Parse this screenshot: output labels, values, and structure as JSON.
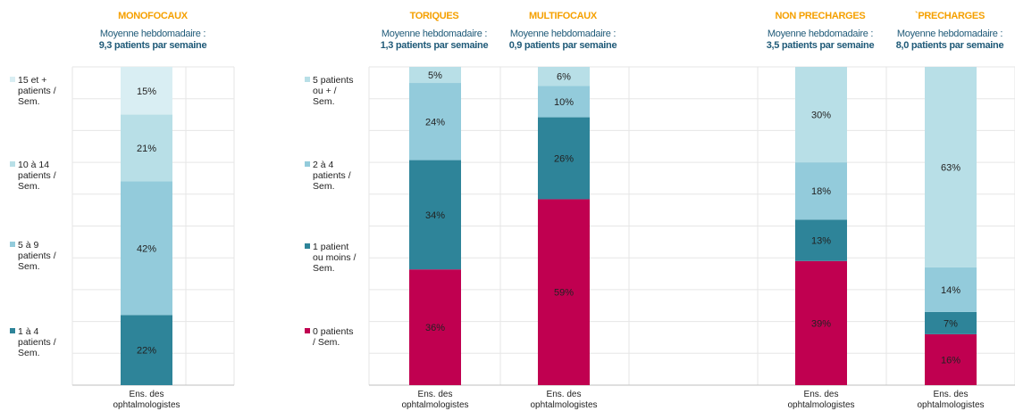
{
  "colors": {
    "cat0": "#c00050",
    "cat1": "#2e8499",
    "cat2": "#93cbdb",
    "cat3": "#b8dfe7",
    "cat4": "#d9eef3",
    "title": "#f5a000",
    "subtitle": "#1f5a78",
    "grid": "#e6e6e6"
  },
  "panels": [
    {
      "title": "MONOFOCAUX",
      "subtitle": "Moyenne hebdomadaire :",
      "average": "9,3 patients par semaine"
    },
    {
      "title": "TORIQUES",
      "subtitle": "Moyenne hebdomadaire :",
      "average": "1,3 patients par semaine"
    },
    {
      "title": "MULTIFOCAUX",
      "subtitle": "Moyenne hebdomadaire :",
      "average": "0,9 patients par semaine"
    },
    {
      "title": "NON PRECHARGES",
      "subtitle": "Moyenne hebdomadaire :",
      "average": "3,5 patients par semaine"
    },
    {
      "title": "`PRECHARGES",
      "subtitle": "Moyenne hebdomadaire :",
      "average": "8,0 patients par semaine"
    }
  ],
  "legend1": [
    {
      "label": "15 et + patients / Sem.",
      "color": "#d9eef3"
    },
    {
      "label": "10 à 14 patients / Sem.",
      "color": "#b8dfe7"
    },
    {
      "label": "5 à 9 patients / Sem.",
      "color": "#93cbdb"
    },
    {
      "label": "1 à 4 patients / Sem.",
      "color": "#2e8499"
    }
  ],
  "legend2": [
    {
      "label": "5 patients ou + / Sem.",
      "color": "#b8dfe7"
    },
    {
      "label": "2 à 4 patients / Sem.",
      "color": "#93cbdb"
    },
    {
      "label": "1 patient ou moins / Sem.",
      "color": "#2e8499"
    },
    {
      "label": "0 patients / Sem.",
      "color": "#c00050"
    }
  ],
  "chart_data": [
    {
      "type": "bar",
      "title": "MONOFOCAUX",
      "categories": [
        "Ens. des ophtalmologistes"
      ],
      "series": [
        {
          "name": "1 à 4 patients / Sem.",
          "values": [
            22
          ]
        },
        {
          "name": "5 à 9 patients / Sem.",
          "values": [
            42
          ]
        },
        {
          "name": "10 à 14 patients / Sem.",
          "values": [
            21
          ]
        },
        {
          "name": "15 et + patients / Sem.",
          "values": [
            15
          ]
        }
      ]
    },
    {
      "type": "bar",
      "title": "TORIQUES",
      "categories": [
        "Ens. des ophtalmologistes"
      ],
      "series": [
        {
          "name": "0 patients / Sem.",
          "values": [
            36
          ]
        },
        {
          "name": "1 patient ou moins / Sem.",
          "values": [
            34
          ]
        },
        {
          "name": "2 à 4 patients / Sem.",
          "values": [
            24
          ]
        },
        {
          "name": "5 patients ou + / Sem.",
          "values": [
            5
          ]
        }
      ]
    },
    {
      "type": "bar",
      "title": "MULTIFOCAUX",
      "categories": [
        "Ens. des ophtalmologistes"
      ],
      "series": [
        {
          "name": "0 patients / Sem.",
          "values": [
            59
          ]
        },
        {
          "name": "1 patient ou moins / Sem.",
          "values": [
            26
          ]
        },
        {
          "name": "2 à 4 patients / Sem.",
          "values": [
            10
          ]
        },
        {
          "name": "5 patients ou + / Sem.",
          "values": [
            6
          ]
        }
      ]
    },
    {
      "type": "bar",
      "title": "NON PRECHARGES",
      "categories": [
        "Ens. des ophtalmologistes"
      ],
      "series": [
        {
          "name": "0 patients / Sem.",
          "values": [
            39
          ]
        },
        {
          "name": "1 patient ou moins / Sem.",
          "values": [
            13
          ]
        },
        {
          "name": "2 à 4 patients / Sem.",
          "values": [
            18
          ]
        },
        {
          "name": "5 patients ou + / Sem.",
          "values": [
            30
          ]
        }
      ]
    },
    {
      "type": "bar",
      "title": "`PRECHARGES",
      "categories": [
        "Ens. des ophtalmologistes"
      ],
      "series": [
        {
          "name": "0 patients / Sem.",
          "values": [
            16
          ]
        },
        {
          "name": "1 patient ou moins / Sem.",
          "values": [
            7
          ]
        },
        {
          "name": "2 à 4 patients / Sem.",
          "values": [
            14
          ]
        },
        {
          "name": "5 patients ou + / Sem.",
          "values": [
            63
          ]
        }
      ]
    }
  ]
}
